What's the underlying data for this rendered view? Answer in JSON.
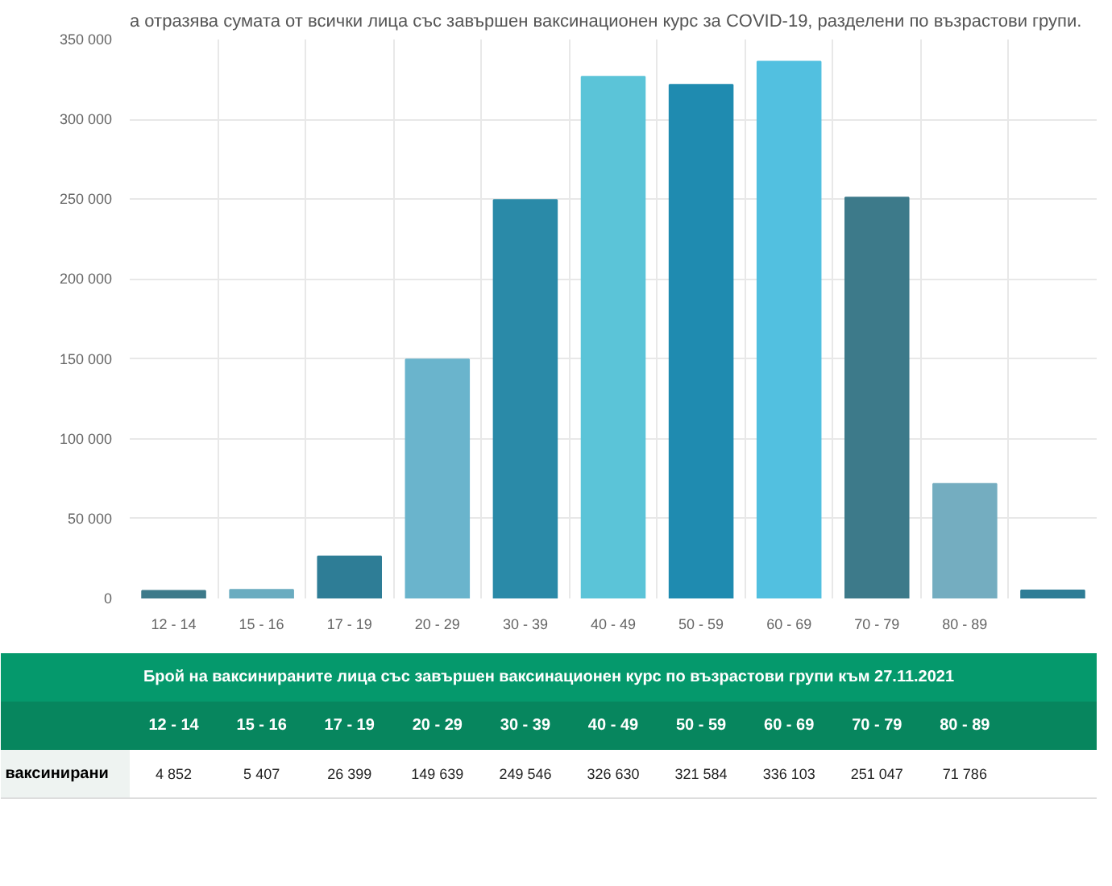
{
  "chart_data": {
    "type": "bar",
    "subtitle": "а отразява сумата от всички лица със завършен ваксинационен курс за COVID-19, разделени по възрастови групи.",
    "categories": [
      "12 - 14",
      "15 - 16",
      "17 - 19",
      "20 - 29",
      "30 - 39",
      "40 - 49",
      "50 - 59",
      "60 - 69",
      "70 - 79",
      "80 - 89",
      null
    ],
    "values": [
      4852,
      5407,
      26399,
      149639,
      249546,
      326630,
      321584,
      336103,
      251047,
      71786,
      5000
    ],
    "value_labels": [
      "4 852",
      "5 407",
      "26 399",
      "149 639",
      "249 546",
      "326 630",
      "321 584",
      "336 103",
      "251 047",
      "71 786",
      null
    ],
    "colors": [
      "#3d7a8a",
      "#6aacc0",
      "#2e7d96",
      "#6ab4cc",
      "#2a8aa8",
      "#5bc4d8",
      "#1f8bb0",
      "#52c0e0",
      "#3d7a8a",
      "#74adc0",
      "#2e7d96"
    ],
    "ylim": [
      0,
      350000
    ],
    "yticks": [
      0,
      {
        "value": 50000,
        "label": "50 000"
      },
      {
        "value": 100000,
        "label": "100 000"
      },
      {
        "value": 150000,
        "label": "150 000"
      },
      {
        "value": 200000,
        "label": "200 000"
      },
      {
        "value": 250000,
        "label": "250 000"
      },
      {
        "value": 300000,
        "label": "300 000"
      },
      {
        "value": 350000,
        "label": "350 000"
      }
    ],
    "grid": true,
    "annotations": [
      "Брой на ваксинираните лица със завършен ваксинационен курс по възрастови групи към 27.11.2021",
      "ваксинирани"
    ]
  }
}
